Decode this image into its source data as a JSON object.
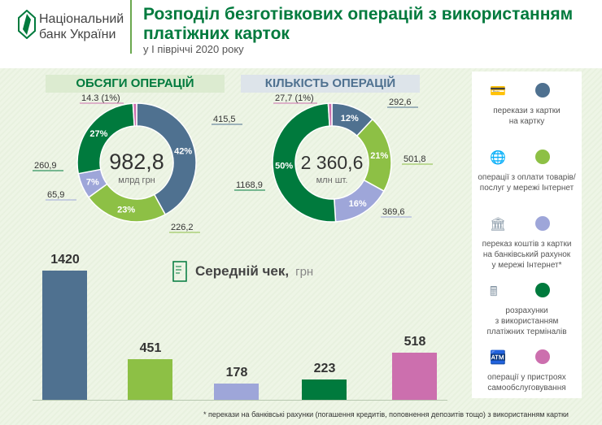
{
  "header": {
    "logo_line1": "Національний",
    "logo_line2": "банк України",
    "title_line1": "Розподіл безготівкових операцій з використанням",
    "title_line2": "платіжних карток",
    "subtitle": "у І півріччі 2020 року"
  },
  "colors": {
    "card_to_card": "#4f7190",
    "internet_purchases": "#8dc045",
    "card_to_account": "#9ea6d9",
    "terminals": "#007a3d",
    "self_service": "#cc6fae",
    "brand": "#007a3d"
  },
  "legend": [
    {
      "icon": "credit-cards-icon",
      "label1": "перекази з картки",
      "label2": "на картку",
      "label3": ""
    },
    {
      "icon": "globe-cart-icon",
      "label1": "операції з оплати товарів/",
      "label2": "послуг у мережі Інтернет",
      "label3": ""
    },
    {
      "icon": "phone-globe-bank-icon",
      "label1": "переказ коштів з картки",
      "label2": "на банківський рахунок",
      "label3": "у мережі Інтернет*"
    },
    {
      "icon": "pos-terminal-icon",
      "label1": "розрахунки",
      "label2": "з використанням",
      "label3": "платіжних терміналів"
    },
    {
      "icon": "atm-touch-icon",
      "label1": "операції у пристроях",
      "label2": "самообслуговування",
      "label3": ""
    }
  ],
  "footer": "* перекази на банківські рахунки (погашення кредитів, поповнення депозитів тощо) з використанням картки",
  "chart_data": [
    {
      "type": "pie",
      "title": "ОБСЯГИ ОПЕРАЦІЙ",
      "center_value": "982,8",
      "center_unit": "млрд грн",
      "slices": [
        {
          "value": "415,5",
          "pct": 42
        },
        {
          "value": "226,2",
          "pct": 23
        },
        {
          "value": "65,9",
          "pct": 7
        },
        {
          "value": "260,9",
          "pct": 27
        },
        {
          "value": "14.3",
          "pct": 1,
          "label": "14.3 (1%)"
        }
      ]
    },
    {
      "type": "pie",
      "title": "КІЛЬКІСТЬ ОПЕРАЦІЙ",
      "center_value": "2 360,6",
      "center_unit": "млн шт.",
      "slices": [
        {
          "value": "292,6",
          "pct": 12
        },
        {
          "value": "501,8",
          "pct": 21
        },
        {
          "value": "369,6",
          "pct": 16
        },
        {
          "value": "1168,9",
          "pct": 50
        },
        {
          "value": "27,7",
          "pct": 1,
          "label": "27,7 (1%)"
        }
      ]
    },
    {
      "type": "bar",
      "title": "Середній чек,",
      "unit": "грн",
      "values": [
        1420,
        451,
        178,
        223,
        518
      ]
    }
  ]
}
